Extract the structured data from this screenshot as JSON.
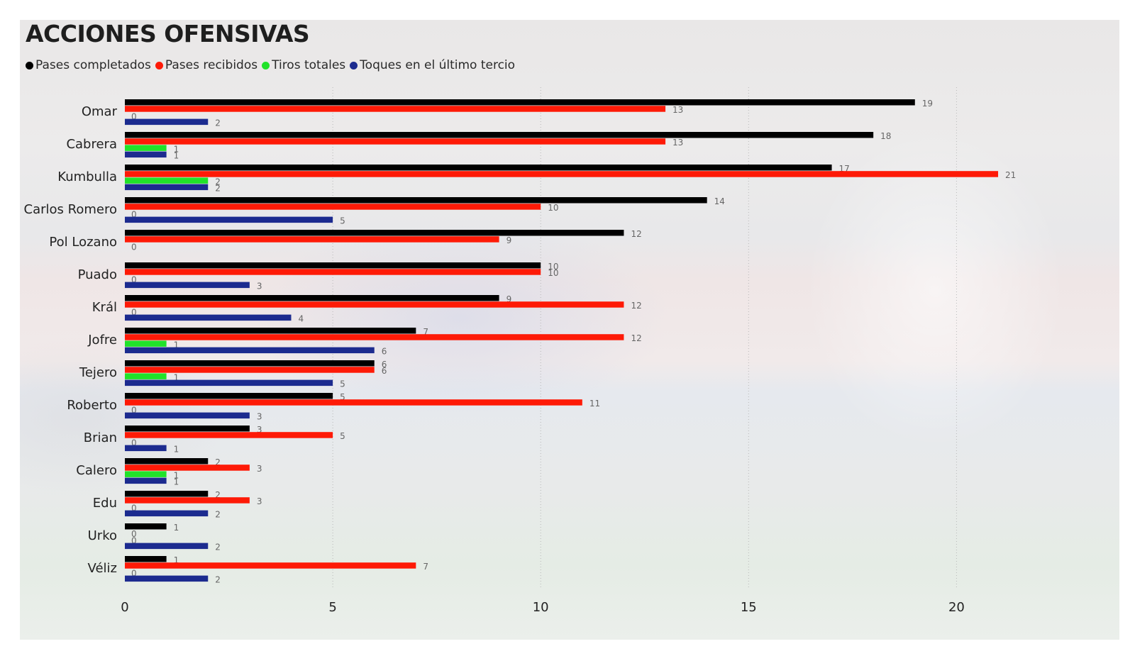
{
  "chart_data": {
    "type": "bar",
    "orientation": "horizontal",
    "title": "ACCIONES OFENSIVAS",
    "xlabel": "",
    "ylabel": "",
    "xlim": [
      0,
      23
    ],
    "xticks": [
      0,
      5,
      10,
      15,
      20
    ],
    "gridlines": true,
    "legend_position": "top-left",
    "categories": [
      "Omar",
      "Cabrera",
      "Kumbulla",
      "Carlos Romero",
      "Pol Lozano",
      "Puado",
      "Král",
      "Jofre",
      "Tejero",
      "Roberto",
      "Brian",
      "Calero",
      "Edu",
      "Urko",
      "Véliz"
    ],
    "series": [
      {
        "name": "Pases completados",
        "color": "#000000",
        "values": [
          19,
          18,
          17,
          14,
          12,
          10,
          9,
          7,
          6,
          5,
          3,
          2,
          2,
          1,
          1
        ]
      },
      {
        "name": "Pases recibidos",
        "color": "#fe1a07",
        "values": [
          13,
          13,
          21,
          10,
          9,
          10,
          12,
          12,
          6,
          11,
          5,
          3,
          3,
          0,
          7
        ]
      },
      {
        "name": "Tiros totales",
        "color": "#21e22a",
        "values": [
          0,
          1,
          2,
          0,
          0,
          0,
          0,
          1,
          1,
          0,
          0,
          1,
          0,
          0,
          0
        ]
      },
      {
        "name": "Toques en el último tercio",
        "color": "#1c2b8f",
        "values": [
          2,
          1,
          2,
          5,
          null,
          3,
          4,
          6,
          5,
          3,
          1,
          1,
          2,
          2,
          2
        ]
      }
    ]
  }
}
